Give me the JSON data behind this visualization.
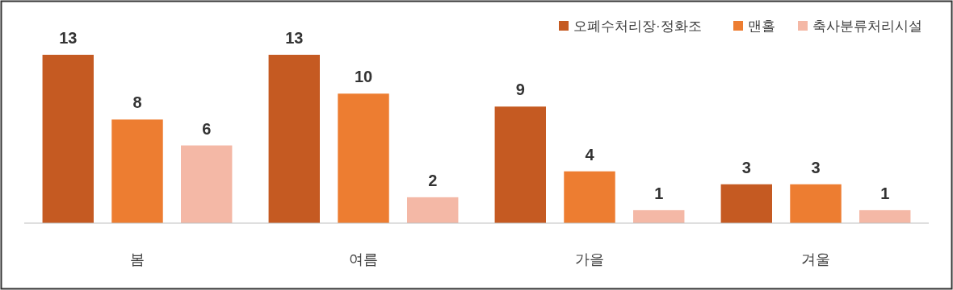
{
  "chart_data": {
    "type": "bar",
    "categories": [
      "봄",
      "여름",
      "가을",
      "겨울"
    ],
    "series": [
      {
        "name": "오폐수처리장·정화조",
        "color": "#c55a22",
        "values": [
          13,
          13,
          9,
          3
        ]
      },
      {
        "name": "맨홀",
        "color": "#ed7d31",
        "values": [
          8,
          10,
          4,
          3
        ]
      },
      {
        "name": "축사분류처리시설",
        "color": "#f4b8a6",
        "values": [
          6,
          2,
          1,
          1
        ]
      }
    ],
    "data_labels": true,
    "legend": "top right",
    "grid": false
  }
}
